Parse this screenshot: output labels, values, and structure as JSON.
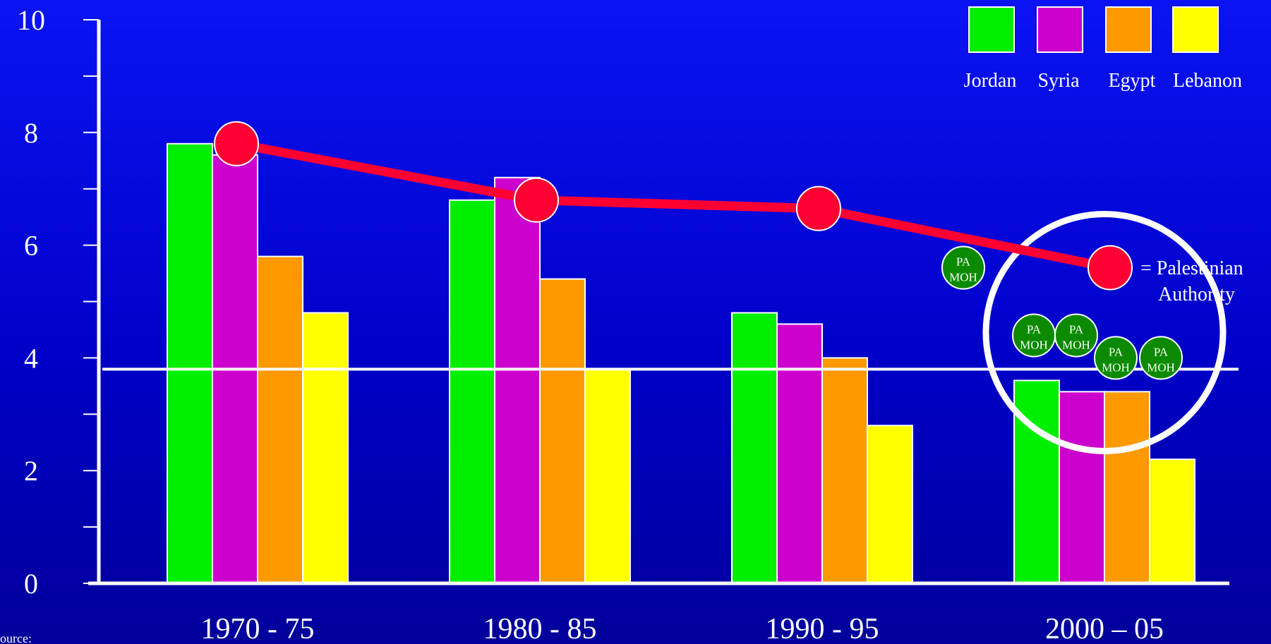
{
  "chart_data": {
    "type": "bar",
    "categories": [
      "1970 - 75",
      "1980 - 85",
      "1990 - 95",
      "2000 – 05"
    ],
    "ylim": [
      0,
      10
    ],
    "y_ticks": [
      0,
      2,
      4,
      6,
      8,
      10
    ],
    "grid": false,
    "legend_placement": "top-right",
    "series": [
      {
        "name": "Jordan",
        "color": "#00ee00",
        "values": [
          7.8,
          6.8,
          4.8,
          3.6
        ]
      },
      {
        "name": "Syria",
        "color": "#cc00cc",
        "values": [
          7.6,
          7.2,
          4.6,
          3.4
        ]
      },
      {
        "name": "Egypt",
        "color": "#ff9900",
        "values": [
          5.8,
          5.4,
          4.0,
          3.4
        ]
      },
      {
        "name": "Lebanon",
        "color": "#ffff00",
        "values": [
          4.8,
          3.8,
          2.8,
          2.2
        ]
      }
    ],
    "line_series": {
      "color": "#ff0033",
      "values": [
        7.8,
        6.8,
        6.65,
        5.6
      ]
    },
    "reference_line": {
      "y": 3.8,
      "color": "#ffffff"
    },
    "pa_markers": [
      {
        "line1": "PA",
        "line2": "MOH",
        "x": 2.5,
        "y": 5.6
      },
      {
        "line1": "PA",
        "line2": "MOH",
        "x": 2.75,
        "y": 4.4
      },
      {
        "line1": "PA",
        "line2": "MOH",
        "x": 2.9,
        "y": 4.4
      },
      {
        "line1": "PA",
        "line2": "MOH",
        "x": 3.04,
        "y": 4.0
      },
      {
        "line1": "PA",
        "line2": "MOH",
        "x": 3.2,
        "y": 4.0
      }
    ],
    "highlight_circle": {
      "x": 3.0,
      "y": 4.45
    }
  },
  "legend_note": {
    "line1": "= Palestinian",
    "line2": "Authority"
  },
  "source_text": "ource:"
}
